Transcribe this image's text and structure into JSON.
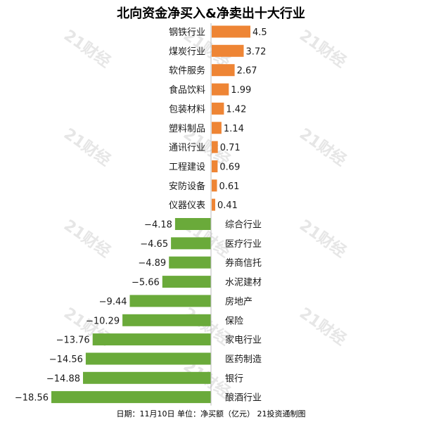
{
  "chart_data": {
    "type": "bar",
    "orientation": "horizontal",
    "title": "北向资金净买入&净卖出十大行业",
    "categories": [
      "钢铁行业",
      "煤炭行业",
      "软件服务",
      "食品饮料",
      "包装材料",
      "塑料制品",
      "通讯行业",
      "工程建设",
      "安防设备",
      "仪器仪表",
      "综合行业",
      "医疗行业",
      "券商信托",
      "水泥建材",
      "房地产",
      "保险",
      "家电行业",
      "医药制造",
      "银行",
      "酿酒行业"
    ],
    "values": [
      4.5,
      3.72,
      2.67,
      1.99,
      1.42,
      1.14,
      0.71,
      0.69,
      0.61,
      0.41,
      -4.18,
      -4.65,
      -4.89,
      -5.66,
      -9.44,
      -10.29,
      -13.76,
      -14.56,
      -14.88,
      -18.56
    ],
    "value_labels": [
      "4.5",
      "3.72",
      "2.67",
      "1.99",
      "1.42",
      "1.14",
      "0.71",
      "0.69",
      "0.61",
      "0.41",
      "−4.18",
      "−4.65",
      "−4.89",
      "−5.66",
      "−9.44",
      "−10.29",
      "−13.76",
      "−14.56",
      "−14.88",
      "−18.56"
    ],
    "xlim": [
      -18.56,
      4.5
    ],
    "xlabel": "",
    "ylabel": "",
    "grid": false,
    "legend": "none"
  },
  "footer": "日期：11月10日 单位：净买额（亿元） 21投资通制图",
  "watermark": "21财经",
  "colors": {
    "positive": "#ee8535",
    "negative": "#6aaa3a",
    "axis": "#bbbbbb",
    "text": "#1a1a1a",
    "watermark": "#e6e6e6"
  }
}
